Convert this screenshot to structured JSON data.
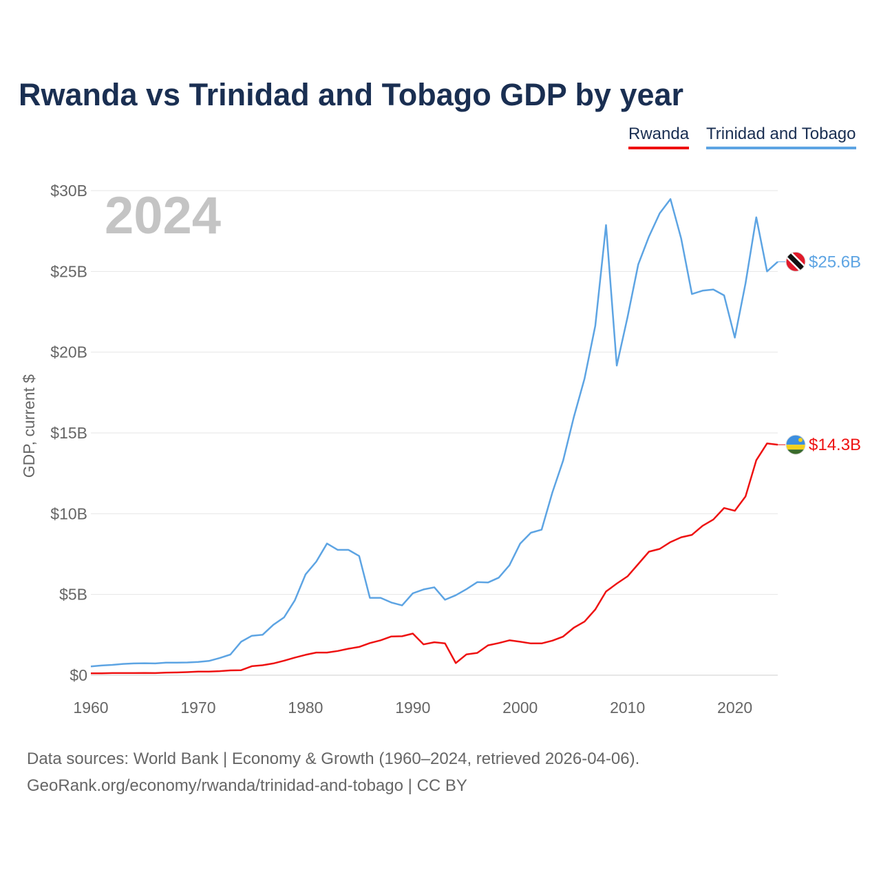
{
  "title": "Rwanda vs Trinidad and Tobago GDP by year",
  "legend": [
    {
      "label": "Rwanda",
      "color": "#ee1111"
    },
    {
      "label": "Trinidad and Tobago",
      "color": "#5da4e3"
    }
  ],
  "year_watermark": "2024",
  "footer": {
    "line1": "Data sources: World Bank | Economy & Growth (1960–2024, retrieved 2026-04-06).",
    "line2": "GeoRank.org/economy/rwanda/trinidad-and-tobago | CC BY"
  },
  "chart_data": {
    "type": "line",
    "title": "Rwanda vs Trinidad and Tobago GDP by year",
    "xlabel": "",
    "ylabel": "GDP, current $",
    "xlim": [
      1960,
      2024
    ],
    "ylim": [
      0,
      30
    ],
    "grid": true,
    "legend_position": "top-right",
    "x_ticks": [
      1960,
      1970,
      1980,
      1990,
      2000,
      2010,
      2020
    ],
    "x_tick_labels": [
      "1960",
      "1970",
      "1980",
      "1990",
      "2000",
      "2010",
      "2020"
    ],
    "y_ticks": [
      0,
      5,
      10,
      15,
      20,
      25,
      30
    ],
    "y_tick_labels": [
      "$0",
      "$5B",
      "$10B",
      "$15B",
      "$20B",
      "$25B",
      "$30B"
    ],
    "x": [
      1960,
      1961,
      1962,
      1963,
      1964,
      1965,
      1966,
      1967,
      1968,
      1969,
      1970,
      1971,
      1972,
      1973,
      1974,
      1975,
      1976,
      1977,
      1978,
      1979,
      1980,
      1981,
      1982,
      1983,
      1984,
      1985,
      1986,
      1987,
      1988,
      1989,
      1990,
      1991,
      1992,
      1993,
      1994,
      1995,
      1996,
      1997,
      1998,
      1999,
      2000,
      2001,
      2002,
      2003,
      2004,
      2005,
      2006,
      2007,
      2008,
      2009,
      2010,
      2011,
      2012,
      2013,
      2014,
      2015,
      2016,
      2017,
      2018,
      2019,
      2020,
      2021,
      2022,
      2023,
      2024
    ],
    "series": [
      {
        "name": "Rwanda",
        "color": "#ee1111",
        "end_label": "$14.3B",
        "values": [
          0.12,
          0.12,
          0.13,
          0.13,
          0.13,
          0.14,
          0.13,
          0.16,
          0.17,
          0.19,
          0.22,
          0.22,
          0.25,
          0.3,
          0.31,
          0.56,
          0.62,
          0.73,
          0.9,
          1.09,
          1.26,
          1.4,
          1.4,
          1.5,
          1.64,
          1.75,
          1.99,
          2.16,
          2.4,
          2.41,
          2.58,
          1.91,
          2.04,
          1.97,
          0.75,
          1.29,
          1.38,
          1.85,
          1.99,
          2.16,
          2.07,
          1.97,
          1.97,
          2.14,
          2.39,
          2.94,
          3.32,
          4.07,
          5.18,
          5.67,
          6.12,
          6.88,
          7.65,
          7.82,
          8.24,
          8.54,
          8.69,
          9.25,
          9.64,
          10.35,
          10.18,
          11.07,
          13.31,
          14.35,
          14.27
        ]
      },
      {
        "name": "Trinidad and Tobago",
        "color": "#5da4e3",
        "end_label": "$25.6B",
        "values": [
          0.54,
          0.6,
          0.64,
          0.7,
          0.73,
          0.74,
          0.73,
          0.78,
          0.78,
          0.79,
          0.82,
          0.88,
          1.06,
          1.28,
          2.07,
          2.44,
          2.5,
          3.12,
          3.58,
          4.63,
          6.24,
          7.03,
          8.15,
          7.76,
          7.76,
          7.38,
          4.79,
          4.79,
          4.5,
          4.32,
          5.07,
          5.31,
          5.44,
          4.67,
          4.95,
          5.33,
          5.76,
          5.74,
          6.04,
          6.81,
          8.15,
          8.82,
          9.01,
          11.31,
          13.28,
          15.98,
          18.37,
          21.64,
          27.87,
          19.17,
          22.16,
          25.43,
          27.16,
          28.6,
          29.48,
          27.03,
          23.6,
          23.81,
          23.88,
          23.52,
          20.9,
          24.27,
          28.35,
          25.0,
          25.6
        ]
      }
    ]
  }
}
